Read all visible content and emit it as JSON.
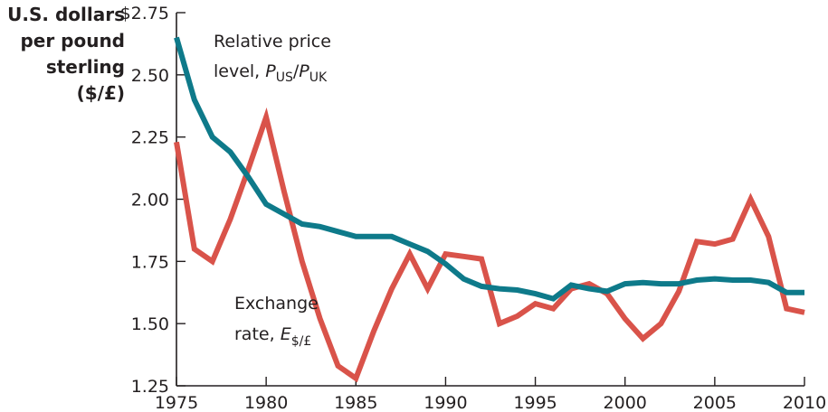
{
  "chart_data": {
    "type": "line",
    "title": "",
    "ylabel_lines": [
      "U.S. dollars",
      "per pound",
      "sterling",
      "($/£)"
    ],
    "xlabel": "",
    "xlim": [
      1975,
      2010
    ],
    "ylim": [
      1.25,
      2.75
    ],
    "grid": false,
    "x_ticks": [
      1975,
      1980,
      1985,
      1990,
      1995,
      2000,
      2005,
      2010
    ],
    "x_tick_labels": [
      "1975",
      "1980",
      "1985",
      "1990",
      "1995",
      "2000",
      "2005",
      "2010"
    ],
    "y_ticks": [
      1.25,
      1.5,
      1.75,
      2.0,
      2.25,
      2.5,
      2.75
    ],
    "y_tick_labels": [
      "1.25",
      "1.50",
      "1.75",
      "2.00",
      "2.25",
      "2.50",
      "$2.75"
    ],
    "x": [
      1975,
      1976,
      1977,
      1978,
      1979,
      1980,
      1981,
      1982,
      1983,
      1984,
      1985,
      1986,
      1987,
      1988,
      1989,
      1990,
      1991,
      1992,
      1993,
      1994,
      1995,
      1996,
      1997,
      1998,
      1999,
      2000,
      2001,
      2002,
      2003,
      2004,
      2005,
      2006,
      2007,
      2008,
      2009,
      2010
    ],
    "series": [
      {
        "name": "Relative price level, PUS/PUK",
        "label_main": "Relative price",
        "label_prefix": "level, ",
        "label_var1": "P",
        "label_sub1": "US",
        "label_slash": "/",
        "label_var2": "P",
        "label_sub2": "UK",
        "color": "#0e7a8a",
        "values": [
          2.65,
          2.4,
          2.25,
          2.19,
          2.09,
          1.98,
          1.94,
          1.9,
          1.89,
          1.87,
          1.85,
          1.85,
          1.85,
          1.82,
          1.79,
          1.74,
          1.68,
          1.65,
          1.64,
          1.635,
          1.62,
          1.6,
          1.655,
          1.64,
          1.63,
          1.66,
          1.665,
          1.66,
          1.66,
          1.675,
          1.68,
          1.675,
          1.675,
          1.665,
          1.625,
          1.625
        ]
      },
      {
        "name": "Exchange rate, E$/£",
        "label_main": "Exchange",
        "label_prefix": "rate, ",
        "label_var1": "E",
        "label_sub1": "$/£",
        "color": "#d9534a",
        "values": [
          2.23,
          1.8,
          1.75,
          1.92,
          2.12,
          2.33,
          2.03,
          1.75,
          1.52,
          1.33,
          1.28,
          1.47,
          1.64,
          1.78,
          1.64,
          1.78,
          1.77,
          1.76,
          1.5,
          1.53,
          1.58,
          1.56,
          1.64,
          1.66,
          1.62,
          1.52,
          1.44,
          1.5,
          1.63,
          1.83,
          1.82,
          1.84,
          2.0,
          1.85,
          1.56,
          1.545
        ]
      }
    ]
  }
}
